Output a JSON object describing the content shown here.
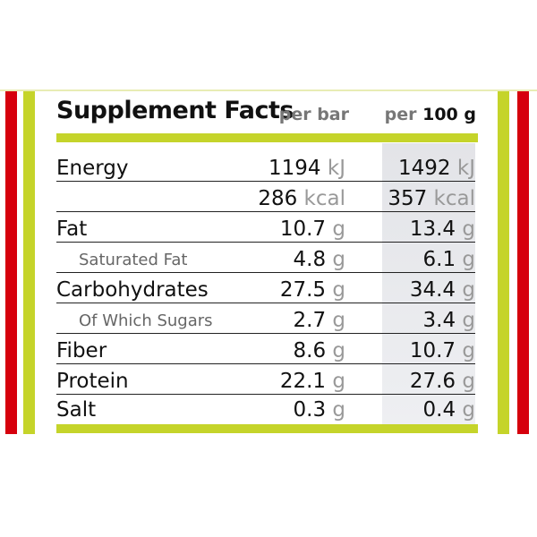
{
  "colors": {
    "red": "#d6000d",
    "lime": "#c5d42a",
    "shade": "#e6e7ea"
  },
  "header": {
    "title": "Supplement Facts",
    "col1": "per bar",
    "col2_prefix": "per",
    "col2_value": "100 g"
  },
  "rows": [
    {
      "label": "Energy",
      "sub": false,
      "v1": "1194",
      "u1": "kJ",
      "v2": "1492",
      "u2": "kJ"
    },
    {
      "label": "",
      "sub": false,
      "v1": "286",
      "u1": "kcal",
      "v2": "357",
      "u2": "kcal"
    },
    {
      "label": "Fat",
      "sub": false,
      "v1": "10.7",
      "u1": "g",
      "v2": "13.4",
      "u2": "g"
    },
    {
      "label": "Saturated Fat",
      "sub": true,
      "v1": "4.8",
      "u1": "g",
      "v2": "6.1",
      "u2": "g"
    },
    {
      "label": "Carbohydrates",
      "sub": false,
      "v1": "27.5",
      "u1": "g",
      "v2": "34.4",
      "u2": "g"
    },
    {
      "label": "Of Which Sugars",
      "sub": true,
      "v1": "2.7",
      "u1": "g",
      "v2": "3.4",
      "u2": "g"
    },
    {
      "label": "Fiber",
      "sub": false,
      "v1": "8.6",
      "u1": "g",
      "v2": "10.7",
      "u2": "g"
    },
    {
      "label": "Protein",
      "sub": false,
      "v1": "22.1",
      "u1": "g",
      "v2": "27.6",
      "u2": "g"
    },
    {
      "label": "Salt",
      "sub": false,
      "v1": "0.3",
      "u1": "g",
      "v2": "0.4",
      "u2": "g"
    }
  ]
}
